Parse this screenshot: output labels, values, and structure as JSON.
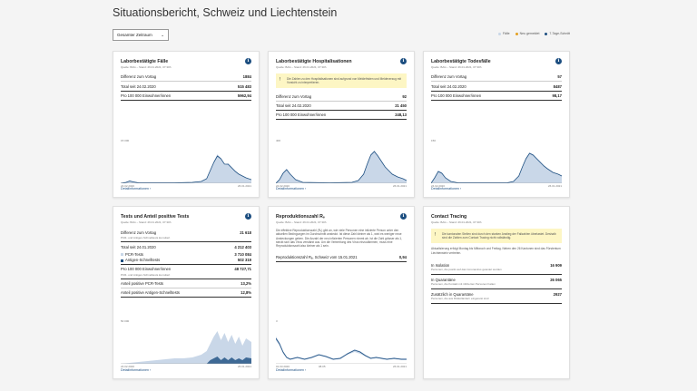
{
  "page": {
    "title": "Situationsbericht, Schweiz und Liechtenstein"
  },
  "filter": {
    "label": "Gesamter Zeitraum",
    "chevron": "chevron-down-icon"
  },
  "legend": [
    {
      "label": "Fälle",
      "color": "#c9d7e8"
    },
    {
      "label": "Neu gemeldet",
      "color": "#e3a021"
    },
    {
      "label": "7-Tage-Schnitt",
      "color": "#1c4e80"
    }
  ],
  "cases": {
    "title": "Laborbestätigte Fälle",
    "source": "Quelle: BAG – Stand: 26.01.2021, 07:30h",
    "rows": [
      {
        "label": "Differenz zum Vortag",
        "value": "1884"
      },
      {
        "label": "Total seit 24.02.2020",
        "value": "515 483"
      },
      {
        "label": "Pro 100 000 Einwohner/innen",
        "value": "5962,94"
      }
    ],
    "chart": {
      "ymax": "15 000",
      "x_start": "24.02.2020",
      "x_end": "26.01.2021"
    },
    "detail": "Detailinformationen"
  },
  "hosp": {
    "title": "Laborbestätigte Hospitalisationen",
    "source": "Quelle: BAG – Stand: 26.01.2021, 07:30h",
    "note": "Die Zahlen zu den Hospitalisationen sind aufgrund von Meldefristen und Meldeverzug mit Vorsicht zu interpretieren.",
    "rows": [
      {
        "label": "Differenz zum Vortag",
        "value": "92"
      },
      {
        "label": "Total seit 24.02.2020",
        "value": "21 450"
      },
      {
        "label": "Pro 100 000 Einwohner/innen",
        "value": "248,13"
      }
    ],
    "chart": {
      "ymax": "400",
      "x_start": "24.02.2020",
      "x_end": "26.01.2021"
    },
    "detail": "Detailinformationen"
  },
  "deaths": {
    "title": "Laborbestätigte Todesfälle",
    "source": "Quelle: BAG – Stand: 26.01.2021, 07:30h",
    "rows": [
      {
        "label": "Differenz zum Vortag",
        "value": "57"
      },
      {
        "label": "Total seit 24.02.2020",
        "value": "8487"
      },
      {
        "label": "Pro 100 000 Einwohner/innen",
        "value": "98,17"
      }
    ],
    "chart": {
      "ymax": "150",
      "x_start": "24.02.2020",
      "x_end": "26.01.2021"
    },
    "detail": "Detailinformationen"
  },
  "tests": {
    "title": "Tests und Anteil positive Tests",
    "source": "Quelle: BAG – Stand: 26.01.2021, 07:30h",
    "row1": {
      "label": "Differenz zum Vortag",
      "value": "21 618",
      "sub": "PCR- und Antigen-Schnelltests kumuliert"
    },
    "row2": {
      "label": "Total seit 24.01.2020",
      "value": "4 212 403"
    },
    "row3": {
      "label": "PCR-Tests",
      "value": "3 710 084"
    },
    "row4": {
      "label": "Antigen-Schnelltests",
      "value": "502 319"
    },
    "row5": {
      "label": "Pro 100 000 Einwohner/innen",
      "value": "48 727,71",
      "sub": "PCR- und Antigen-Schnelltests kumuliert"
    },
    "row6": {
      "label": "Anteil positive PCR-Tests",
      "value": "13,2%"
    },
    "row7": {
      "label": "Anteil positive Antigen-Schnelltests",
      "value": "12,8%"
    },
    "chart": {
      "ymax": "50 000",
      "x_start": "24.02.2020",
      "x_end": "26.01.2021"
    },
    "detail": "Detailinformationen"
  },
  "repro": {
    "title": "Reproduktionszahl Rₑ",
    "source": "Quelle: BAG – Stand: 26.01.2021, 07:30h",
    "text": "Die effektive Reproduktionszahl (Rₑ) gibt an, wie viele Personen eine infizierte Person unter den aktuellen Bedingungen im Durchschnitt ansteckt. Ist diese Zahl kleiner als 1, wird es weniger neue Ansteckungen geben. Die Anzahl der neu infizierten Personen nimmt ab. Ist die Zahl grösser als 1, steckt sich das Virus verstärkt aus. Um die Verbreitung des Virus einzudämmen, muss eine Reproduktionszahl also kleiner als 1 sein.",
    "row": {
      "label": "Reproduktionszahl Rₑ, Schweiz vom 15.01.2021",
      "value": "0,94"
    },
    "chart": {
      "ymax": "3",
      "x_start": "01.03.2020",
      "x_mid": "08.05",
      "x_end": "26.01.2021"
    },
    "detail": "Detailinformationen"
  },
  "tracing": {
    "title": "Contact Tracing",
    "source": "Quelle: BAG – Stand: 26.01.2021, 07:30h",
    "note": "Die kantonalen Stellen sind durch den starken Anstieg der Fallzahlen überlastet. Deshalb sind die Zahlen zum Contact Tracing nicht vollständig.",
    "text": "Aktualisierung erfolgt Montag bis Mittwoch und Freitag. Neben den 26 Kantonen sind das Fürstentum Liechtenstein vertreten.",
    "rows": [
      {
        "label": "In Isolation",
        "value": "16 909",
        "sub": "Personen, die positiv auf das Coronavirus getestet wurden"
      },
      {
        "label": "In Quarantäne",
        "value": "26 065",
        "sub": "Personen, die Kontakt mit infizierten Personen hatten"
      },
      {
        "label": "Zusätzlich in Quarantäne",
        "value": "2927",
        "sub": "Personen, die aus Risikoländern eingereist sind"
      }
    ]
  }
}
